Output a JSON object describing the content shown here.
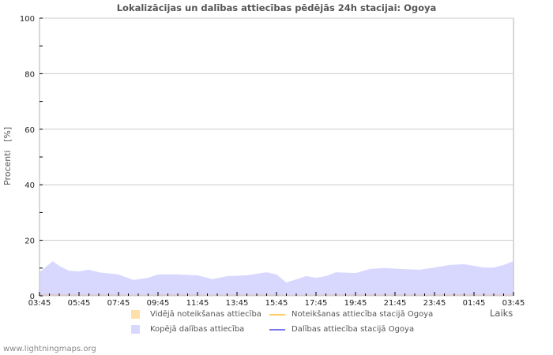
{
  "title": "Lokalizācijas un dalības attiecības pēdējās 24h stacijai: Ogoya",
  "y_axis_label": "Procenti   [%]",
  "x_axis_label": "Laiks",
  "footer": "www.lightningmaps.org",
  "colors": {
    "avg_detection_fill": "#ffe0a8",
    "station_detection_line": "#ffcc66",
    "total_participation_fill": "#d8d8ff",
    "station_participation_line": "#7777ee",
    "grid": "#cccccc",
    "frame": "#cccccc"
  },
  "legend": [
    {
      "label": "Vidējā noteikšanas attiecība",
      "kind": "area",
      "color": "#ffe0a8"
    },
    {
      "label": "Noteikšanas attiecība stacijā Ogoya",
      "kind": "line",
      "color": "#ffcc66"
    },
    {
      "label": "Kopējā dalības attiecība",
      "kind": "area",
      "color": "#d8d8ff"
    },
    {
      "label": "Dalības attiecība stacijā Ogoya",
      "kind": "line",
      "color": "#7777ee"
    }
  ],
  "chart_data": {
    "type": "area",
    "title": "Lokalizācijas un dalības attiecības pēdējās 24h stacijai: Ogoya",
    "xlabel": "Laiks",
    "ylabel": "Procenti [%]",
    "ylim": [
      0,
      100
    ],
    "yticks": [
      0,
      20,
      40,
      60,
      80,
      100
    ],
    "xticks": [
      "03:45",
      "05:45",
      "07:45",
      "09:45",
      "11:45",
      "13:45",
      "15:45",
      "17:45",
      "19:45",
      "21:45",
      "23:45",
      "01:45",
      "03:45"
    ],
    "grid": true,
    "legend_position": "bottom",
    "x_hours": [
      0,
      0.67,
      1.0,
      1.5,
      2.0,
      2.5,
      3.0,
      4.0,
      4.75,
      5.5,
      6.0,
      7.0,
      8.0,
      8.75,
      9.5,
      10.5,
      11.5,
      12.0,
      12.5,
      13.5,
      14.0,
      14.5,
      15.0,
      16.0,
      16.75,
      17.5,
      18.25,
      19.25,
      20.0,
      20.75,
      21.5,
      22.5,
      23.0,
      23.5,
      24.0
    ],
    "series": [
      {
        "name": "Kopējā dalības attiecība",
        "kind": "area",
        "values": [
          8.5,
          12.5,
          10.8,
          9.0,
          8.8,
          9.4,
          8.5,
          7.7,
          5.7,
          6.5,
          7.7,
          7.7,
          7.4,
          6.0,
          7.1,
          7.4,
          8.5,
          7.7,
          4.8,
          7.1,
          6.5,
          7.1,
          8.5,
          8.2,
          9.7,
          10.0,
          9.7,
          9.4,
          10.2,
          11.1,
          11.4,
          10.2,
          10.2,
          11.1,
          12.5
        ]
      },
      {
        "name": "Vidējā noteikšanas attiecība",
        "kind": "area",
        "values": [
          0.5,
          0.7,
          0.6,
          0.5,
          0.5,
          0.5,
          0.5,
          0.5,
          0.3,
          0.4,
          0.5,
          0.5,
          0.5,
          0.4,
          0.5,
          0.5,
          0.5,
          0.5,
          0.3,
          0.4,
          0.4,
          0.5,
          0.5,
          0.5,
          0.5,
          0.5,
          0.5,
          0.5,
          0.5,
          0.6,
          0.6,
          0.5,
          0.5,
          0.5,
          0.6
        ]
      },
      {
        "name": "Noteikšanas attiecība stacijā Ogoya",
        "kind": "line",
        "values": [
          0,
          0,
          0,
          0,
          0,
          0,
          0,
          0,
          0,
          0,
          0,
          0,
          0,
          0,
          0,
          0,
          0,
          0,
          0,
          0,
          0,
          0,
          0,
          0,
          0,
          0,
          0,
          0,
          0,
          0,
          0,
          0,
          0,
          0,
          0
        ]
      },
      {
        "name": "Dalības attiecība stacijā Ogoya",
        "kind": "line",
        "values": [
          0,
          0,
          0,
          0,
          0,
          0,
          0,
          0,
          0,
          0,
          0,
          0,
          0,
          0,
          0,
          0,
          0,
          0,
          0,
          0,
          0,
          0,
          0,
          0,
          0,
          0,
          0,
          0,
          0,
          0,
          0,
          0,
          0,
          0,
          0
        ]
      }
    ]
  }
}
